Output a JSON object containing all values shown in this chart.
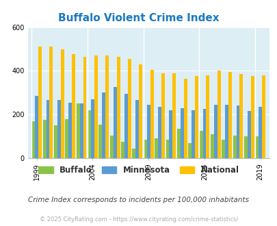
{
  "title": "Buffalo Violent Crime Index",
  "years": [
    1999,
    2000,
    2001,
    2002,
    2003,
    2004,
    2005,
    2006,
    2007,
    2008,
    2009,
    2010,
    2011,
    2012,
    2013,
    2014,
    2015,
    2016,
    2017,
    2018,
    2019,
    2020
  ],
  "buffalo": [
    170,
    175,
    150,
    180,
    250,
    220,
    155,
    105,
    75,
    45,
    85,
    90,
    85,
    135,
    70,
    125,
    110,
    85,
    105,
    100,
    100,
    0
  ],
  "minnesota": [
    285,
    265,
    265,
    255,
    250,
    270,
    300,
    325,
    295,
    265,
    245,
    235,
    220,
    230,
    220,
    225,
    245,
    243,
    240,
    215,
    235,
    0
  ],
  "national": [
    510,
    510,
    500,
    475,
    465,
    470,
    470,
    465,
    455,
    430,
    405,
    390,
    390,
    365,
    375,
    380,
    400,
    395,
    385,
    375,
    380,
    0
  ],
  "colors": {
    "buffalo": "#8bc34a",
    "minnesota": "#5b9bd5",
    "national": "#ffc000"
  },
  "bg_color": "#ddeef4",
  "ylim": [
    0,
    600
  ],
  "yticks": [
    0,
    200,
    400,
    600
  ],
  "xtick_years": [
    1999,
    2004,
    2009,
    2014,
    2019
  ],
  "subtitle": "Crime Index corresponds to incidents per 100,000 inhabitants",
  "footer": "© 2025 CityRating.com - https://www.cityrating.com/crime-statistics/",
  "title_color": "#1a7abf",
  "subtitle_color": "#444444",
  "footer_color": "#aaaaaa",
  "legend_labels": [
    "Buffalo",
    "Minnesota",
    "National"
  ]
}
